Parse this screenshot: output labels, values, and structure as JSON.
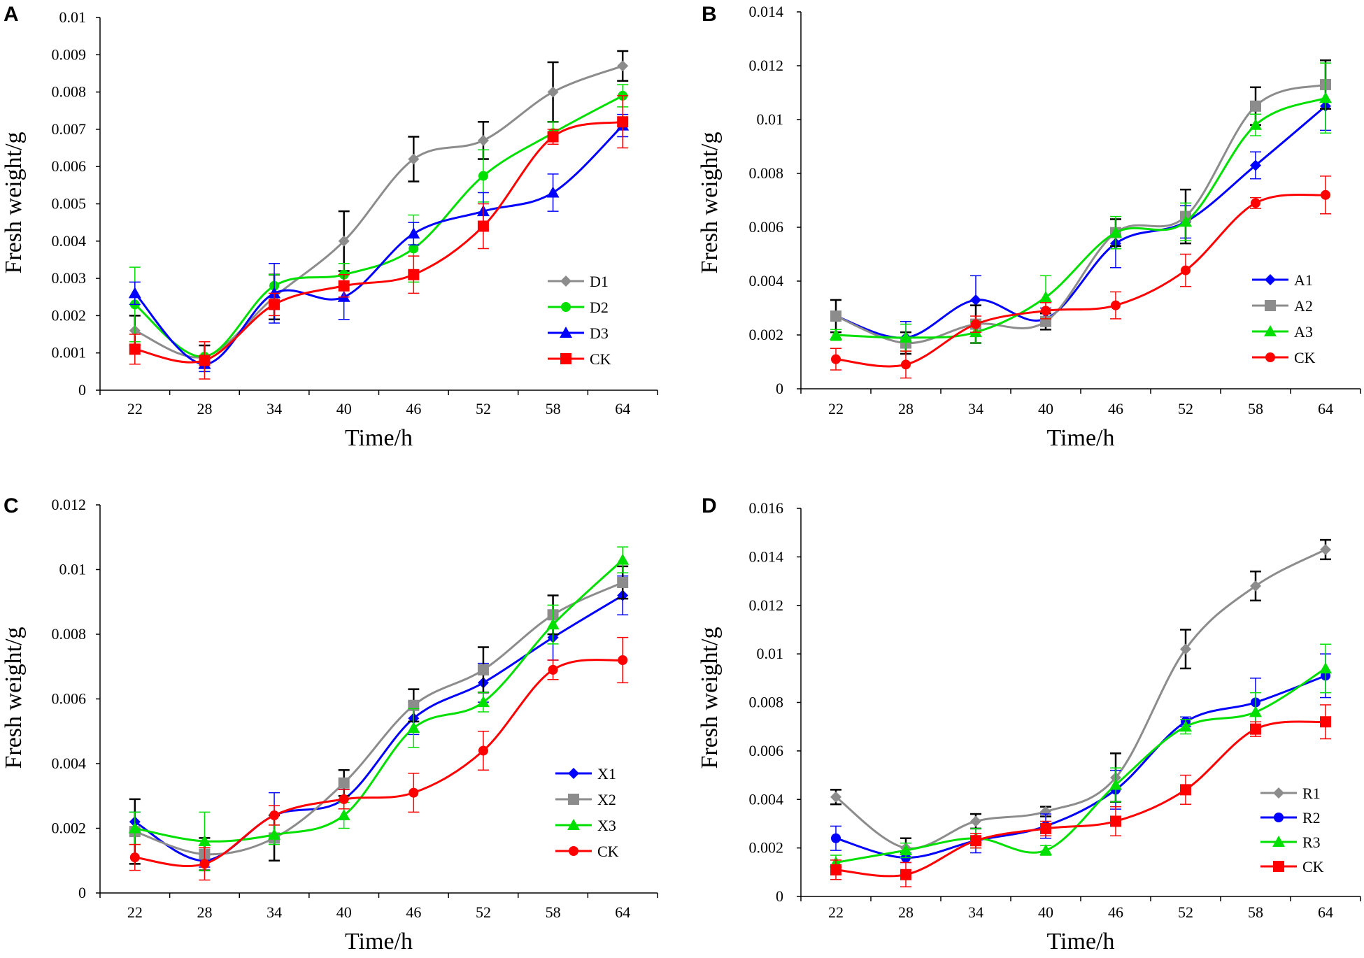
{
  "chart_data": [
    {
      "panel": "A",
      "type": "line",
      "x": [
        22,
        28,
        34,
        40,
        46,
        52,
        58,
        64
      ],
      "xlabel": "Time/h",
      "ylabel": "Fresh weight/g",
      "ylim": [
        0,
        0.01
      ],
      "yticks": [
        "0",
        "0.001",
        "0.002",
        "0.003",
        "0.004",
        "0.005",
        "0.006",
        "0.007",
        "0.008",
        "0.009",
        "0.01"
      ],
      "legend": "right, lower half",
      "series": [
        {
          "name": "D1",
          "color": "#8c8c8c",
          "marker": "diamond",
          "values": [
            0.0016,
            0.0009,
            0.0025,
            0.004,
            0.0062,
            0.0067,
            0.008,
            0.0087
          ],
          "errors": [
            0.0004,
            0.0003,
            0.0006,
            0.0008,
            0.0006,
            0.0005,
            0.0008,
            0.0004
          ],
          "err_color": "#000000"
        },
        {
          "name": "D2",
          "color": "#00e000",
          "marker": "circle",
          "values": [
            0.0023,
            0.0009,
            0.0028,
            0.0031,
            0.0038,
            0.00575,
            0.0069,
            0.0079
          ],
          "errors": [
            0.001,
            0.0004,
            0.0003,
            0.0003,
            0.0009,
            0.0007,
            0.0003,
            0.0003
          ],
          "err_color": "#00e000"
        },
        {
          "name": "D3",
          "color": "#0000ff",
          "marker": "triangle",
          "values": [
            0.0026,
            0.0007,
            0.0026,
            0.0025,
            0.0042,
            0.0048,
            0.0053,
            0.0071
          ],
          "errors": [
            0.0003,
            0.0002,
            0.0008,
            0.0006,
            0.0003,
            0.0005,
            0.0005,
            0.0003
          ],
          "err_color": "#0000ff"
        },
        {
          "name": "CK",
          "color": "#ff0000",
          "marker": "square",
          "values": [
            0.0011,
            0.0008,
            0.0023,
            0.0028,
            0.0031,
            0.0044,
            0.0068,
            0.0072
          ],
          "errors": [
            0.0004,
            0.0005,
            0.0003,
            0.0003,
            0.0005,
            0.0006,
            0.0002,
            0.0007
          ],
          "err_color": "#ff0000"
        }
      ]
    },
    {
      "panel": "B",
      "type": "line",
      "x": [
        22,
        28,
        34,
        40,
        46,
        52,
        58,
        64
      ],
      "xlabel": "Time/h",
      "ylabel": "Fresh weight/g",
      "ylim": [
        0,
        0.014
      ],
      "yticks": [
        "0",
        "0.002",
        "0.004",
        "0.006",
        "0.008",
        "0.01",
        "0.012",
        "0.014"
      ],
      "legend": "right, lower half",
      "series": [
        {
          "name": "A1",
          "color": "#0000ff",
          "marker": "diamond",
          "values": [
            0.0027,
            0.0019,
            0.0033,
            0.0026,
            0.0054,
            0.0062,
            0.0083,
            0.0105
          ],
          "errors": [
            0.0006,
            0.0006,
            0.0009,
            0.0004,
            0.0009,
            0.0006,
            0.0005,
            0.0009
          ],
          "err_color": "#0000ff"
        },
        {
          "name": "A2",
          "color": "#8c8c8c",
          "marker": "square",
          "values": [
            0.0027,
            0.0017,
            0.0024,
            0.0025,
            0.0058,
            0.0064,
            0.0105,
            0.0113
          ],
          "errors": [
            0.0006,
            0.0004,
            0.0007,
            0.0003,
            0.0005,
            0.001,
            0.0007,
            0.0009
          ],
          "err_color": "#000000"
        },
        {
          "name": "A3",
          "color": "#00e000",
          "marker": "triangle",
          "values": [
            0.002,
            0.0019,
            0.0021,
            0.0034,
            0.0058,
            0.0062,
            0.0098,
            0.0108
          ],
          "errors": [
            0.0002,
            0.0005,
            0.0004,
            0.0008,
            0.0006,
            0.0007,
            0.0004,
            0.0013
          ],
          "err_color": "#00e000"
        },
        {
          "name": "CK",
          "color": "#ff0000",
          "marker": "circle",
          "values": [
            0.0011,
            0.0009,
            0.0024,
            0.0029,
            0.0031,
            0.0044,
            0.0069,
            0.0072
          ],
          "errors": [
            0.0004,
            0.0005,
            0.0003,
            0.0003,
            0.0005,
            0.0006,
            0.0002,
            0.0007
          ],
          "err_color": "#ff0000"
        }
      ]
    },
    {
      "panel": "C",
      "type": "line",
      "x": [
        22,
        28,
        34,
        40,
        46,
        52,
        58,
        64
      ],
      "xlabel": "Time/h",
      "ylabel": "Fresh weight/g",
      "ylim": [
        0,
        0.012
      ],
      "yticks": [
        "0",
        "0.002",
        "0.004",
        "0.006",
        "0.008",
        "0.01",
        "0.012"
      ],
      "legend": "right, lower half",
      "series": [
        {
          "name": "X1",
          "color": "#0000ff",
          "marker": "diamond",
          "values": [
            0.0022,
            0.001,
            0.0024,
            0.0029,
            0.0054,
            0.0065,
            0.0079,
            0.0092
          ],
          "errors": [
            0.0003,
            0.0002,
            0.0007,
            0.0003,
            0.0005,
            0.0006,
            0.0007,
            0.0006
          ],
          "err_color": "#0000ff"
        },
        {
          "name": "X2",
          "color": "#8c8c8c",
          "marker": "square",
          "values": [
            0.0019,
            0.0012,
            0.0017,
            0.0034,
            0.0058,
            0.0069,
            0.0086,
            0.0096
          ],
          "errors": [
            0.001,
            0.0005,
            0.0007,
            0.0004,
            0.0005,
            0.0007,
            0.0006,
            0.0005
          ],
          "err_color": "#000000"
        },
        {
          "name": "X3",
          "color": "#00e000",
          "marker": "triangle",
          "values": [
            0.002,
            0.0016,
            0.0018,
            0.0024,
            0.0051,
            0.0059,
            0.0083,
            0.0103
          ],
          "errors": [
            0.0005,
            0.0009,
            0.0003,
            0.0004,
            0.0006,
            0.0003,
            0.0006,
            0.0004
          ],
          "err_color": "#00e000"
        },
        {
          "name": "CK",
          "color": "#ff0000",
          "marker": "circle",
          "values": [
            0.0011,
            0.0009,
            0.0024,
            0.0029,
            0.0031,
            0.0044,
            0.0069,
            0.0072
          ],
          "errors": [
            0.0004,
            0.0005,
            0.0003,
            0.0003,
            0.0006,
            0.0006,
            0.0003,
            0.0007
          ],
          "err_color": "#ff0000"
        }
      ]
    },
    {
      "panel": "D",
      "type": "line",
      "x": [
        22,
        28,
        34,
        40,
        46,
        52,
        58,
        64
      ],
      "xlabel": "Time/h",
      "ylabel": "Fresh weight/g",
      "ylim": [
        0,
        0.016
      ],
      "yticks": [
        "0",
        "0.002",
        "0.004",
        "0.006",
        "0.008",
        "0.01",
        "0.012",
        "0.014",
        "0.016"
      ],
      "legend": "right, lower half",
      "series": [
        {
          "name": "R1",
          "color": "#8c8c8c",
          "marker": "diamond",
          "values": [
            0.0041,
            0.002,
            0.0031,
            0.0035,
            0.0049,
            0.0102,
            0.0128,
            0.0143
          ],
          "errors": [
            0.0003,
            0.0004,
            0.0003,
            0.0002,
            0.001,
            0.0008,
            0.0006,
            0.0004
          ],
          "err_color": "#000000"
        },
        {
          "name": "R2",
          "color": "#0000ff",
          "marker": "circle",
          "values": [
            0.0024,
            0.0016,
            0.0023,
            0.0029,
            0.0044,
            0.0072,
            0.008,
            0.0091
          ],
          "errors": [
            0.0005,
            0.0002,
            0.0005,
            0.0005,
            0.0008,
            0.0002,
            0.001,
            0.0009
          ],
          "err_color": "#0000ff"
        },
        {
          "name": "R3",
          "color": "#00e000",
          "marker": "triangle",
          "values": [
            0.0014,
            0.0019,
            0.0024,
            0.0019,
            0.0046,
            0.007,
            0.0076,
            0.0094
          ],
          "errors": [
            0.0003,
            0.0003,
            0.0004,
            0.0002,
            0.0007,
            0.0003,
            0.0008,
            0.001
          ],
          "err_color": "#00e000"
        },
        {
          "name": "CK",
          "color": "#ff0000",
          "marker": "square",
          "values": [
            0.0011,
            0.0009,
            0.0023,
            0.0028,
            0.0031,
            0.0044,
            0.0069,
            0.0072
          ],
          "errors": [
            0.0004,
            0.0005,
            0.0003,
            0.0003,
            0.0006,
            0.0006,
            0.0003,
            0.0007
          ],
          "err_color": "#ff0000"
        }
      ]
    }
  ]
}
